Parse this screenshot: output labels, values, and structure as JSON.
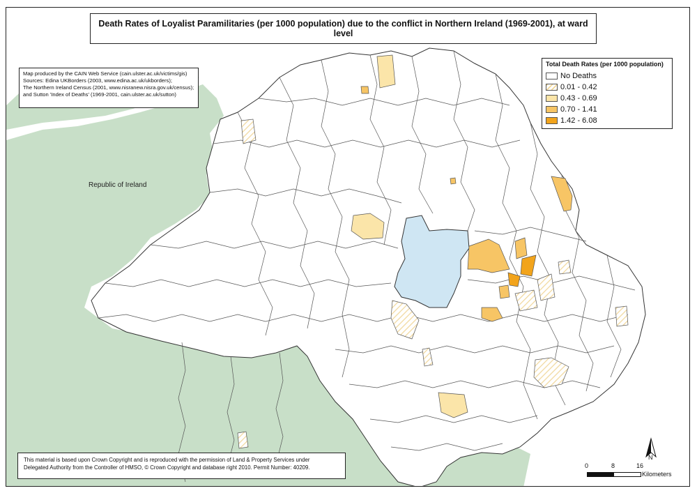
{
  "map": {
    "title": "Death Rates of Loyalist Paramilitaries (per 1000 population) due to the conflict in Northern Ireland (1969-2001), at ward level",
    "neighbour_label": "Republic of Ireland",
    "source_lines": [
      "Map produced by the CAIN Web Service (cain.ulster.ac.uk/victims/gis)",
      "Sources: Edina UKBorders (2003, www.edina.ac.uk/ukborders);",
      "The Northern Ireland Census (2001, www.nisranew.nisra.gov.uk/census);",
      "and Sutton 'Index of Deaths' (1969-2001, cain.ulster.ac.uk/sutton)"
    ],
    "copyright_lines": [
      "This material is based upon Crown Copyright and is reproduced with the permission of Land & Property Services under",
      "Delegated Authority from the Controller of HMSO, © Crown Copyright and database right 2010. Permit Number: 40209."
    ],
    "colors": {
      "land_roi": "#c8dfc8",
      "sea": "#ffffff",
      "lough": "#cfe6f3",
      "ward_fill": "#ffffff",
      "ward_stroke": "#555555"
    }
  },
  "legend": {
    "title": "Total Death Rates (per 1000 population)",
    "items": [
      {
        "label": "No Deaths",
        "color": "#ffffff",
        "pattern": false
      },
      {
        "label": "0.01 - 0.42",
        "color": "#fbe9c0",
        "pattern": true
      },
      {
        "label": "0.43 - 0.69",
        "color": "#fbe5a9",
        "pattern": false
      },
      {
        "label": "0.70 - 1.41",
        "color": "#f7c565",
        "pattern": false
      },
      {
        "label": "1.42 - 6.08",
        "color": "#f2a41c",
        "pattern": false
      }
    ]
  },
  "north_arrow": {
    "label": "N"
  },
  "scale_bar": {
    "ticks": [
      "0",
      "8",
      "16"
    ],
    "unit": "Kilometers"
  }
}
